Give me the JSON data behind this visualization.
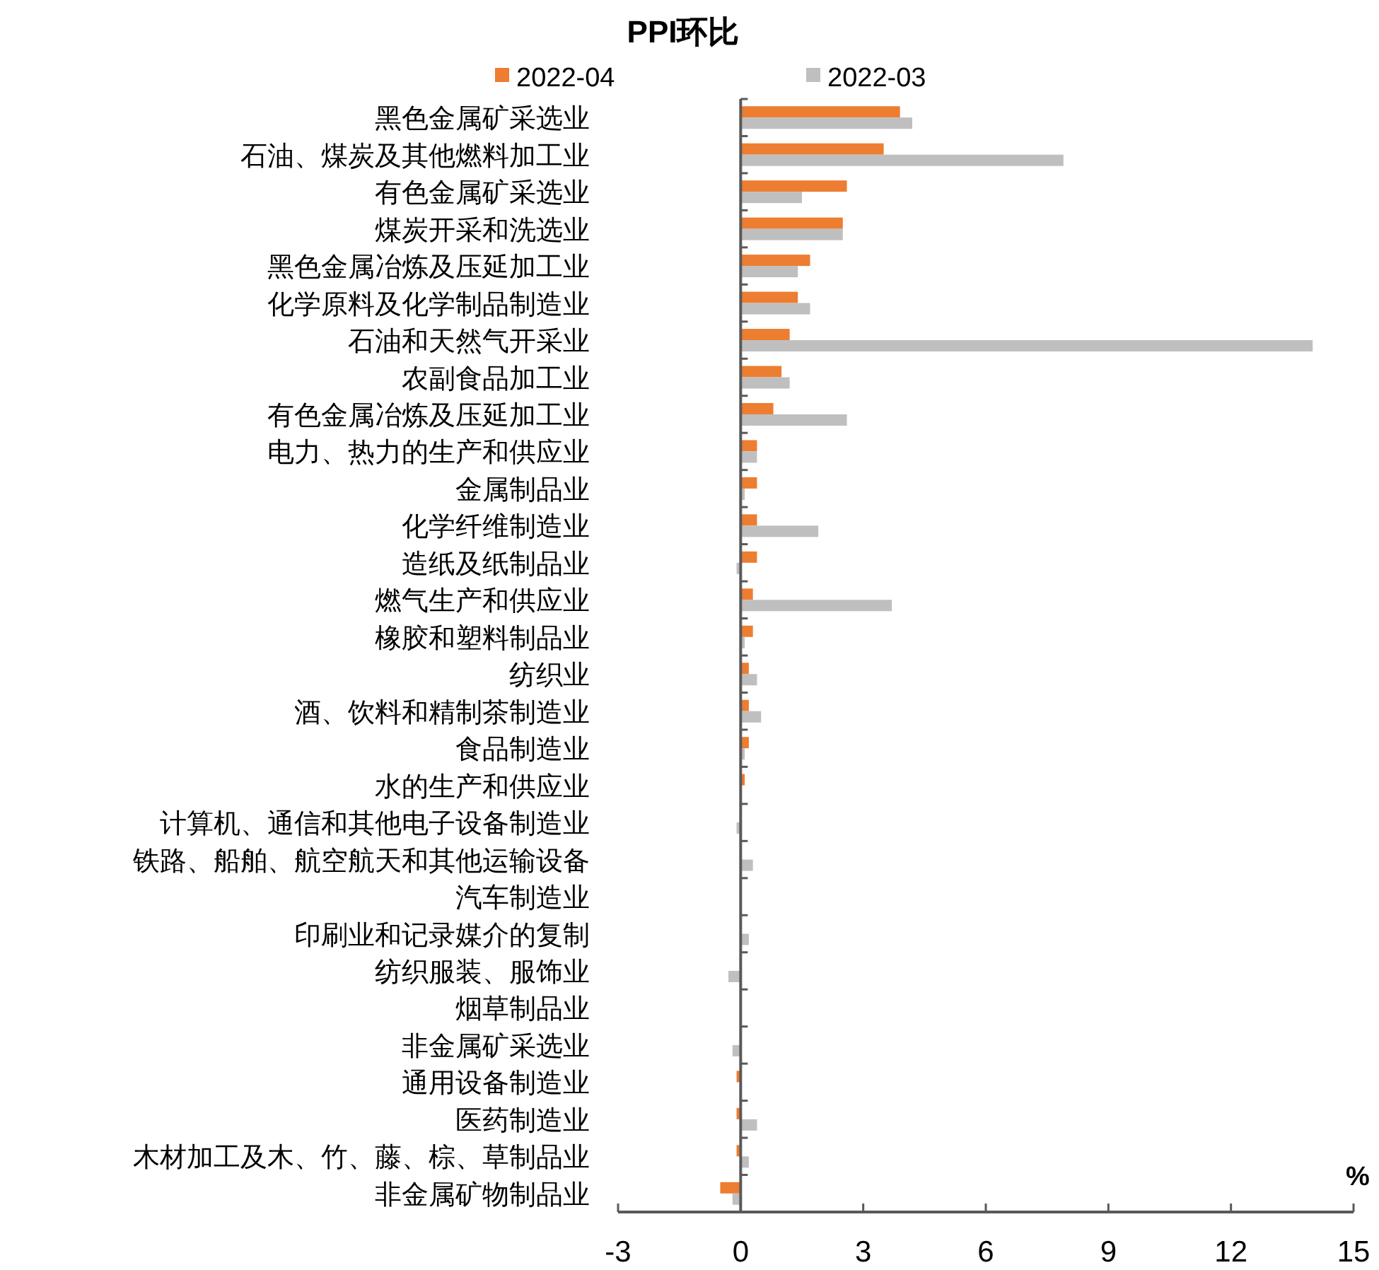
{
  "chart_data": {
    "type": "bar",
    "orientation": "horizontal",
    "title": "PPI环比",
    "xlabel": "%",
    "legend": "top",
    "categories": [
      "黑色金属矿采选业",
      "石油、煤炭及其他燃料加工业",
      "有色金属矿采选业",
      "煤炭开采和洗选业",
      "黑色金属冶炼及压延加工业",
      "化学原料及化学制品制造业",
      "石油和天然气开采业",
      "农副食品加工业",
      "有色金属冶炼及压延加工业",
      "电力、热力的生产和供应业",
      "金属制品业",
      "化学纤维制造业",
      "造纸及纸制品业",
      "燃气生产和供应业",
      "橡胶和塑料制品业",
      "纺织业",
      "酒、饮料和精制茶制造业",
      "食品制造业",
      "水的生产和供应业",
      "计算机、通信和其他电子设备制造业",
      "铁路、船舶、航空航天和其他运输设备",
      "汽车制造业",
      "印刷业和记录媒介的复制",
      "纺织服装、服饰业",
      "烟草制品业",
      "非金属矿采选业",
      "通用设备制造业",
      "医药制造业",
      "木材加工及木、竹、藤、棕、草制品业",
      "非金属矿物制品业"
    ],
    "series": [
      {
        "name": "2022-04",
        "color": "#ed7d31",
        "values": [
          3.9,
          3.5,
          2.6,
          2.5,
          1.7,
          1.4,
          1.2,
          1.0,
          0.8,
          0.4,
          0.4,
          0.4,
          0.4,
          0.3,
          0.3,
          0.2,
          0.2,
          0.2,
          0.1,
          0,
          0,
          0,
          0,
          0,
          0,
          0,
          -0.1,
          -0.1,
          -0.1,
          -0.5
        ]
      },
      {
        "name": "2022-03",
        "color": "#bfbfbf",
        "values": [
          4.2,
          7.9,
          1.5,
          2.5,
          1.4,
          1.7,
          14.0,
          1.2,
          2.6,
          0.4,
          0.1,
          1.9,
          -0.1,
          3.7,
          0.1,
          0.4,
          0.5,
          0.1,
          0,
          -0.1,
          0.3,
          0,
          0.2,
          -0.3,
          0,
          -0.2,
          0,
          0.4,
          0.2,
          -0.2
        ]
      }
    ],
    "xlim": [
      -3,
      15
    ],
    "xticks": [
      -3,
      0,
      3,
      6,
      9,
      12,
      15
    ]
  }
}
